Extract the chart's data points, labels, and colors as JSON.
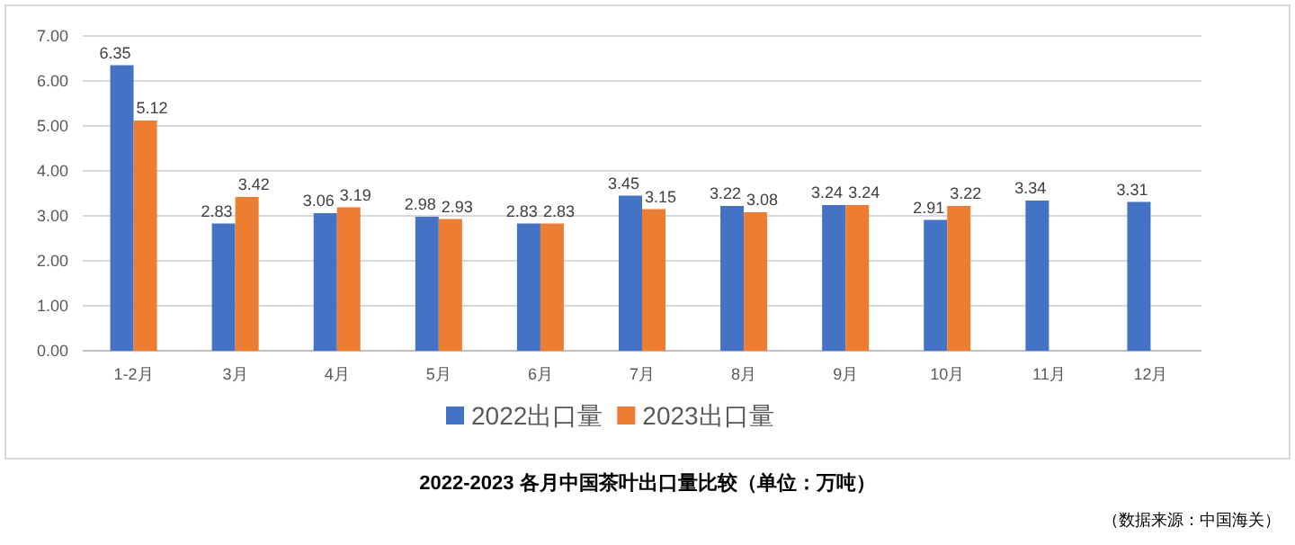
{
  "chart_data": {
    "type": "bar",
    "title": "2022-2023 各月中国茶叶出口量比较（单位：万吨）",
    "annotations": [
      "（数据来源：中国海关）"
    ],
    "categories": [
      "1-2月",
      "3月",
      "4月",
      "5月",
      "6月",
      "7月",
      "8月",
      "9月",
      "10月",
      "11月",
      "12月"
    ],
    "series": [
      {
        "name": "2022出口量",
        "color": "#4472c4",
        "values": [
          6.35,
          2.83,
          3.06,
          2.98,
          2.83,
          3.45,
          3.22,
          3.24,
          2.91,
          3.34,
          3.31
        ]
      },
      {
        "name": "2023出口量",
        "color": "#ed7d31",
        "values": [
          5.12,
          3.42,
          3.19,
          2.93,
          2.83,
          3.15,
          3.08,
          3.24,
          3.22,
          null,
          null
        ]
      }
    ],
    "ylim": [
      0,
      7
    ],
    "yticks": [
      {
        "value": 0,
        "label": "0.00"
      },
      {
        "value": 1,
        "label": "1.00"
      },
      {
        "value": 2,
        "label": "2.00"
      },
      {
        "value": 3,
        "label": "3.00"
      },
      {
        "value": 4,
        "label": "4.00"
      },
      {
        "value": 5,
        "label": "5.00"
      },
      {
        "value": 6,
        "label": "6.00"
      },
      {
        "value": 7,
        "label": "7.00"
      }
    ],
    "grid": "y",
    "legend": "bottom",
    "data_labels": true
  }
}
